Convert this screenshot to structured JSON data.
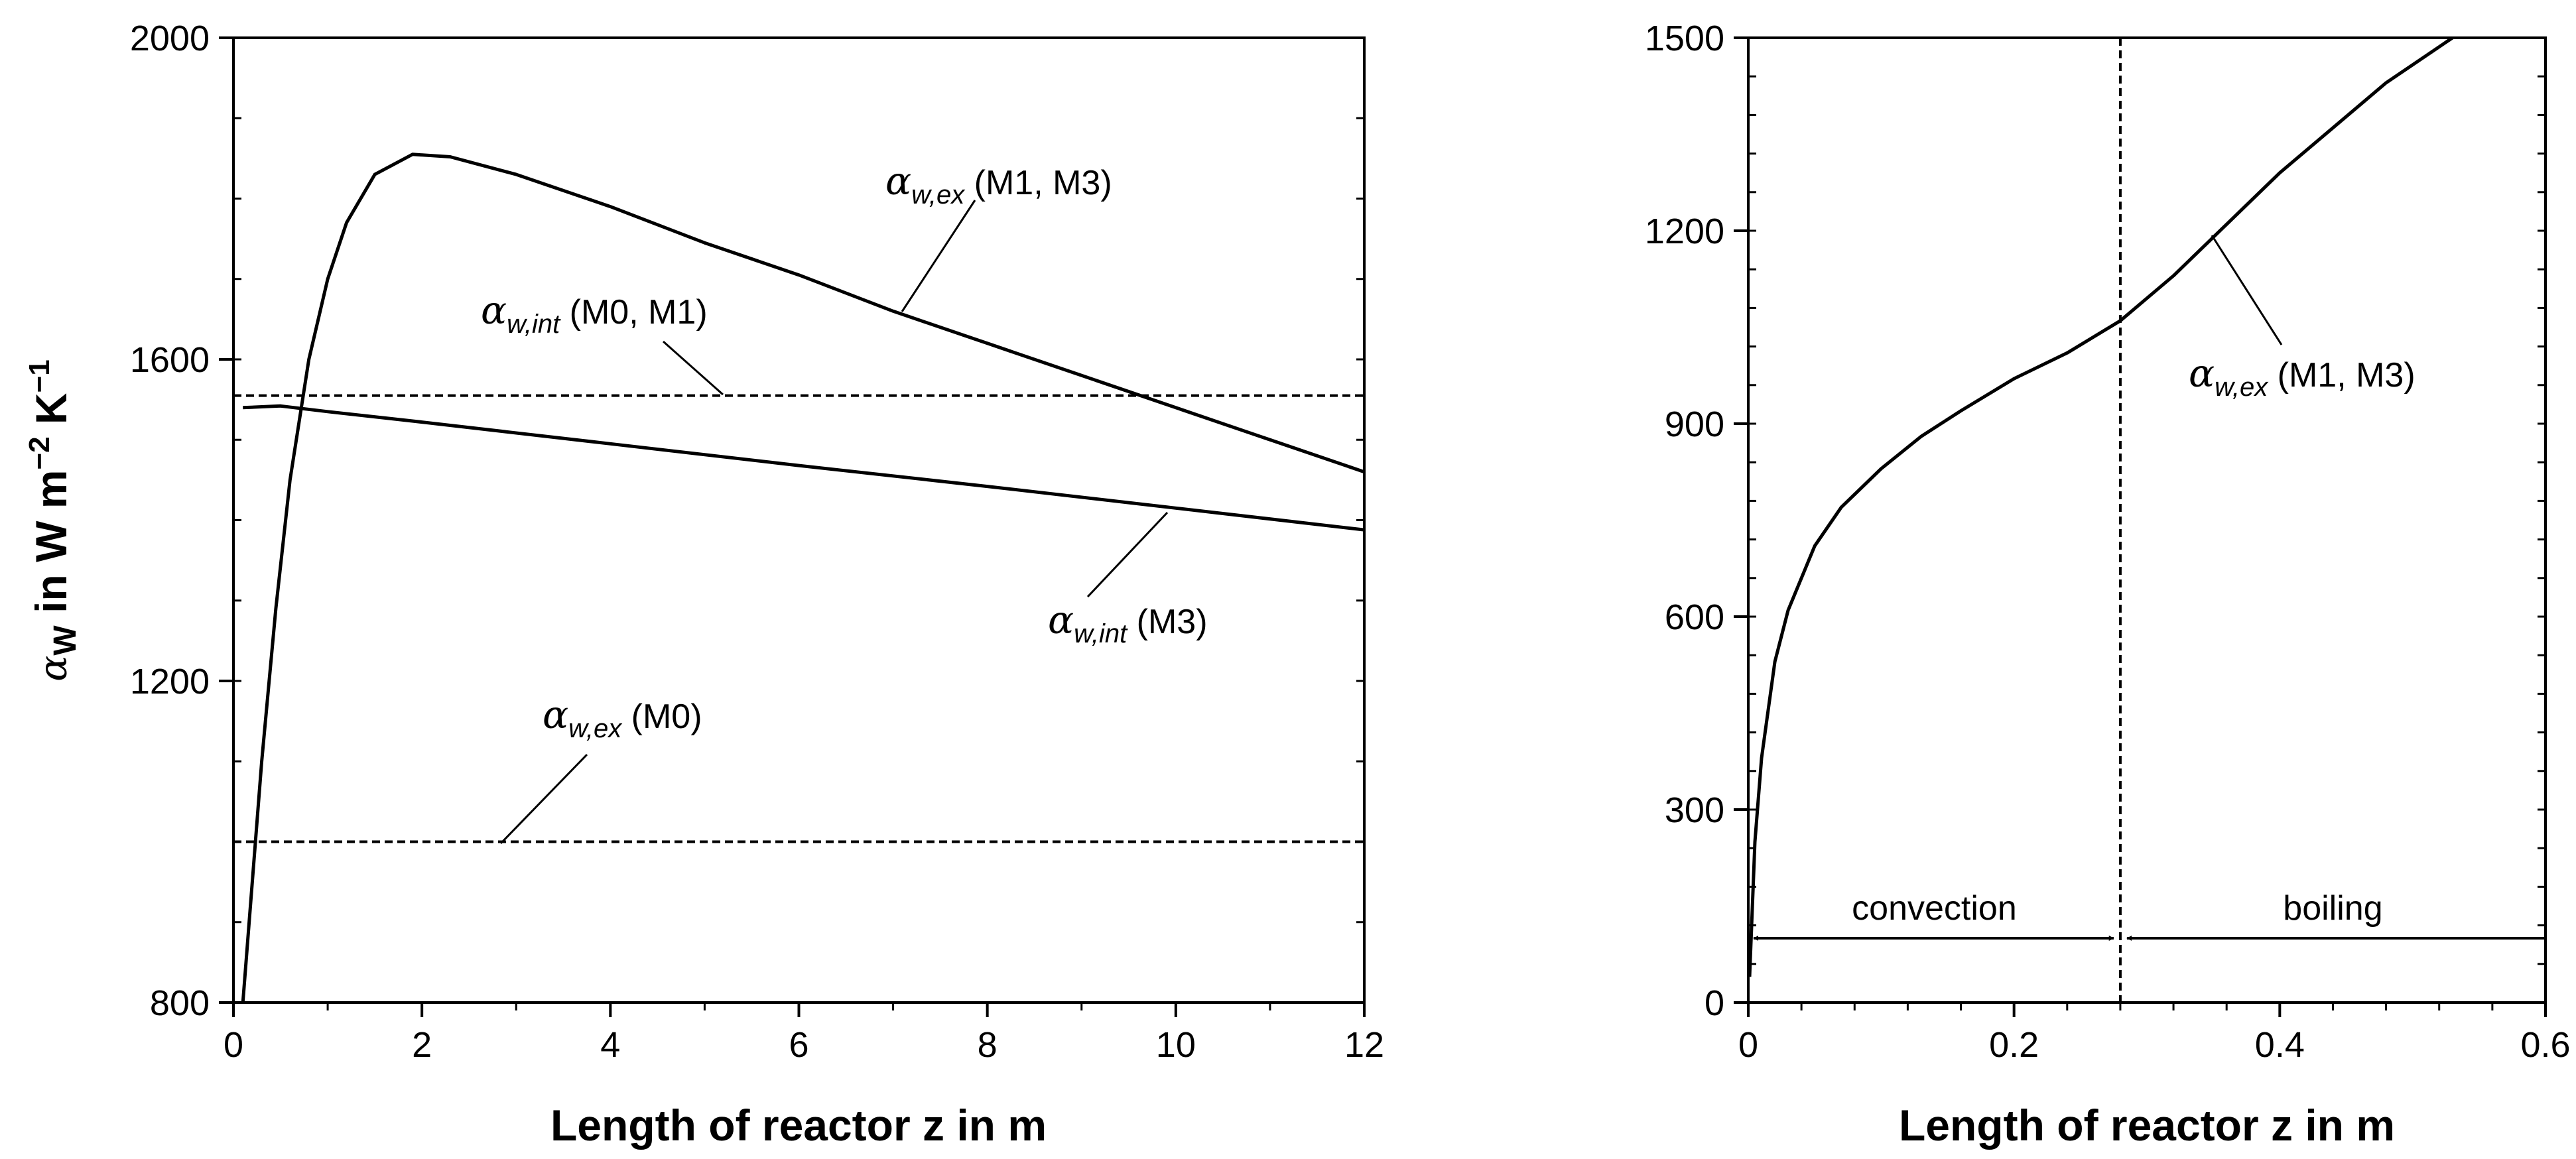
{
  "chart_data": [
    {
      "type": "line",
      "title": "",
      "xlabel": "Length of reactor z in m",
      "ylabel": "αW in W m−2 K−1",
      "xlim": [
        0,
        12
      ],
      "ylim": [
        800,
        2000
      ],
      "x_ticks": [
        "0",
        "2",
        "4",
        "6",
        "8",
        "10",
        "12"
      ],
      "y_ticks": [
        "800",
        "1200",
        "1600",
        "2000"
      ],
      "grid": false,
      "series": [
        {
          "name": "αw,ex (M1, M3)",
          "style": "solid",
          "x": [
            0.1,
            0.2,
            0.3,
            0.45,
            0.6,
            0.8,
            1.0,
            1.2,
            1.5,
            1.9,
            2.3,
            3,
            4,
            5,
            6,
            7,
            8,
            9,
            10,
            11,
            12
          ],
          "y": [
            800,
            950,
            1100,
            1290,
            1450,
            1600,
            1700,
            1770,
            1830,
            1855,
            1852,
            1830,
            1790,
            1745,
            1705,
            1660,
            1620,
            1580,
            1540,
            1500,
            1460
          ]
        },
        {
          "name": "αw,int (M0, M1)",
          "style": "dashed",
          "x": [
            0,
            12
          ],
          "y": [
            1555,
            1555
          ]
        },
        {
          "name": "αw,int (M3)",
          "style": "solid",
          "x": [
            0.1,
            0.5,
            1,
            2,
            4,
            6,
            8,
            10,
            12
          ],
          "y": [
            1540,
            1542,
            1535,
            1522,
            1495,
            1468,
            1442,
            1415,
            1388
          ]
        },
        {
          "name": "αw,ex (M0)",
          "style": "dashed",
          "x": [
            0,
            12
          ],
          "y": [
            1000,
            1000
          ]
        }
      ],
      "annotations": [
        {
          "base": "α",
          "sub": "w,ex",
          "text": "(M1, M3)"
        },
        {
          "base": "α",
          "sub": "w,int",
          "text": "(M0, M1)"
        },
        {
          "base": "α",
          "sub": "w,int",
          "text": "(M3)"
        },
        {
          "base": "α",
          "sub": "w,ex",
          "text": "(M0)"
        }
      ]
    },
    {
      "type": "line",
      "title": "",
      "xlabel": "Length of reactor z in m",
      "ylabel": "",
      "xlim": [
        0,
        0.6
      ],
      "ylim": [
        0,
        1500
      ],
      "x_ticks": [
        "0",
        "0.2",
        "0.4",
        "0.6"
      ],
      "y_ticks": [
        "0",
        "300",
        "600",
        "900",
        "1200",
        "1500"
      ],
      "grid": false,
      "series": [
        {
          "name": "αw,ex (M1, M3)",
          "style": "solid",
          "x": [
            0.001,
            0.005,
            0.01,
            0.02,
            0.03,
            0.05,
            0.07,
            0.1,
            0.13,
            0.16,
            0.2,
            0.24,
            0.28,
            0.32,
            0.36,
            0.4,
            0.44,
            0.48,
            0.53
          ],
          "y": [
            40,
            250,
            380,
            530,
            610,
            710,
            770,
            830,
            880,
            920,
            970,
            1010,
            1060,
            1130,
            1210,
            1290,
            1360,
            1430,
            1500
          ]
        }
      ],
      "boundary_z": 0.28,
      "regions": [
        {
          "label": "convection",
          "from": 0,
          "to": 0.28,
          "arrow_y": 100
        },
        {
          "label": "boiling",
          "from": 0.28,
          "to": 0.6,
          "arrow_y": 100
        }
      ],
      "annotations": [
        {
          "base": "α",
          "sub": "w,ex",
          "text": "(M1, M3)"
        }
      ]
    }
  ]
}
